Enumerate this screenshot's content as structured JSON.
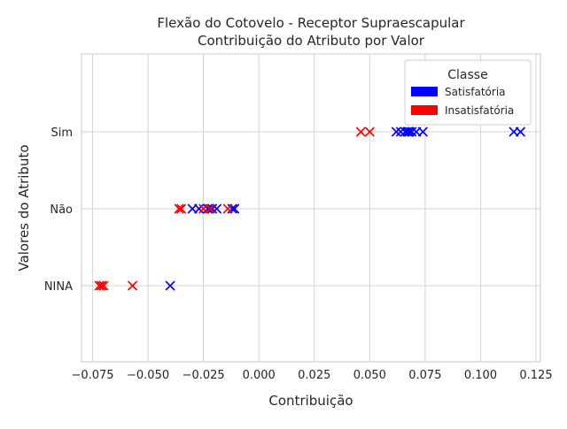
{
  "chart_data": {
    "type": "scatter",
    "title_line1": "Flexão do Cotovelo - Receptor Supraescapular",
    "title_line2": "Contribuição do Atributo por Valor",
    "xlabel": "Contribuição",
    "ylabel": "Valores do Atributo",
    "xlim": [
      -0.08,
      0.127
    ],
    "x_ticks": [
      -0.075,
      -0.05,
      -0.025,
      0.0,
      0.025,
      0.05,
      0.075,
      0.1,
      0.125
    ],
    "x_tick_labels": [
      "−0.075",
      "−0.050",
      "−0.025",
      "0.000",
      "0.025",
      "0.050",
      "0.075",
      "0.100",
      "0.125"
    ],
    "categories": [
      "NINA",
      "Não",
      "Sim"
    ],
    "marker": "x",
    "grid": true,
    "legend": {
      "title": "Classe",
      "placement": "top-right",
      "entries": [
        {
          "label": "Satisfatória",
          "color": "#0000ff"
        },
        {
          "label": "Insatisfatória",
          "color": "#ff0000"
        }
      ]
    },
    "series": [
      {
        "name": "Satisfatória",
        "color": "#0000ff",
        "points": [
          {
            "category": "Sim",
            "x": 0.062
          },
          {
            "category": "Sim",
            "x": 0.064
          },
          {
            "category": "Sim",
            "x": 0.066
          },
          {
            "category": "Sim",
            "x": 0.067
          },
          {
            "category": "Sim",
            "x": 0.068
          },
          {
            "category": "Sim",
            "x": 0.069
          },
          {
            "category": "Sim",
            "x": 0.071
          },
          {
            "category": "Sim",
            "x": 0.074
          },
          {
            "category": "Sim",
            "x": 0.115
          },
          {
            "category": "Sim",
            "x": 0.118
          },
          {
            "category": "Não",
            "x": -0.03
          },
          {
            "category": "Não",
            "x": -0.027
          },
          {
            "category": "Não",
            "x": -0.023
          },
          {
            "category": "Não",
            "x": -0.021
          },
          {
            "category": "Não",
            "x": -0.019
          },
          {
            "category": "Não",
            "x": -0.012
          },
          {
            "category": "Não",
            "x": -0.011
          },
          {
            "category": "NINA",
            "x": -0.04
          }
        ]
      },
      {
        "name": "Insatisfatória",
        "color": "#ff0000",
        "points": [
          {
            "category": "Sim",
            "x": 0.046
          },
          {
            "category": "Sim",
            "x": 0.05
          },
          {
            "category": "Não",
            "x": -0.036
          },
          {
            "category": "Não",
            "x": -0.035
          },
          {
            "category": "Não",
            "x": -0.025
          },
          {
            "category": "Não",
            "x": -0.022
          },
          {
            "category": "Não",
            "x": -0.014
          },
          {
            "category": "NINA",
            "x": -0.072
          },
          {
            "category": "NINA",
            "x": -0.071
          },
          {
            "category": "NINA",
            "x": -0.07
          },
          {
            "category": "NINA",
            "x": -0.057
          }
        ]
      }
    ]
  }
}
